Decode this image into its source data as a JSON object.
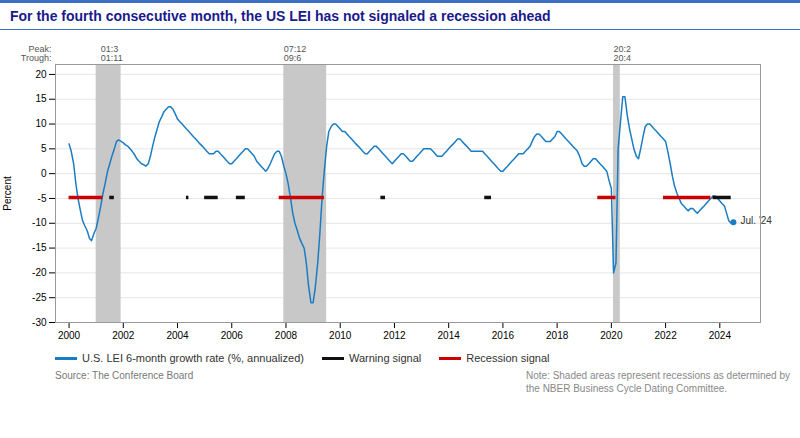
{
  "chart_data": {
    "type": "line",
    "title": "For the fourth consecutive month, the US LEI has not signaled a recession ahead",
    "ylabel": "Percent",
    "xlim": [
      1999.5,
      2025.5
    ],
    "xticks": [
      2000,
      2002,
      2004,
      2006,
      2008,
      2010,
      2012,
      2014,
      2016,
      2018,
      2020,
      2022,
      2024
    ],
    "ylim": [
      -30,
      22
    ],
    "yticks": [
      -30,
      -25,
      -20,
      -15,
      -10,
      -5,
      0,
      5,
      10,
      15,
      20
    ],
    "grid": "y",
    "x": [
      2000.0,
      2000.08,
      2000.17,
      2000.25,
      2000.33,
      2000.42,
      2000.5,
      2000.58,
      2000.67,
      2000.75,
      2000.83,
      2000.92,
      2001.0,
      2001.08,
      2001.17,
      2001.25,
      2001.33,
      2001.42,
      2001.5,
      2001.58,
      2001.67,
      2001.75,
      2001.83,
      2001.92,
      2002.0,
      2002.08,
      2002.17,
      2002.25,
      2002.33,
      2002.42,
      2002.5,
      2002.58,
      2002.67,
      2002.75,
      2002.83,
      2002.92,
      2003.0,
      2003.08,
      2003.17,
      2003.25,
      2003.33,
      2003.42,
      2003.5,
      2003.58,
      2003.67,
      2003.75,
      2003.83,
      2003.92,
      2004.0,
      2004.08,
      2004.17,
      2004.25,
      2004.33,
      2004.42,
      2004.5,
      2004.58,
      2004.67,
      2004.75,
      2004.83,
      2004.92,
      2005.0,
      2005.08,
      2005.17,
      2005.25,
      2005.33,
      2005.42,
      2005.5,
      2005.58,
      2005.67,
      2005.75,
      2005.83,
      2005.92,
      2006.0,
      2006.08,
      2006.17,
      2006.25,
      2006.33,
      2006.42,
      2006.5,
      2006.58,
      2006.67,
      2006.75,
      2006.83,
      2006.92,
      2007.0,
      2007.08,
      2007.17,
      2007.25,
      2007.33,
      2007.42,
      2007.5,
      2007.58,
      2007.67,
      2007.75,
      2007.83,
      2007.92,
      2008.0,
      2008.08,
      2008.17,
      2008.25,
      2008.33,
      2008.42,
      2008.5,
      2008.58,
      2008.67,
      2008.75,
      2008.83,
      2008.92,
      2009.0,
      2009.08,
      2009.17,
      2009.25,
      2009.33,
      2009.42,
      2009.5,
      2009.58,
      2009.67,
      2009.75,
      2009.83,
      2009.92,
      2010.0,
      2010.08,
      2010.17,
      2010.25,
      2010.33,
      2010.42,
      2010.5,
      2010.58,
      2010.67,
      2010.75,
      2010.83,
      2010.92,
      2011.0,
      2011.08,
      2011.17,
      2011.25,
      2011.33,
      2011.42,
      2011.5,
      2011.58,
      2011.67,
      2011.75,
      2011.83,
      2011.92,
      2012.0,
      2012.08,
      2012.17,
      2012.25,
      2012.33,
      2012.42,
      2012.5,
      2012.58,
      2012.67,
      2012.75,
      2012.83,
      2012.92,
      2013.0,
      2013.08,
      2013.17,
      2013.25,
      2013.33,
      2013.42,
      2013.5,
      2013.58,
      2013.67,
      2013.75,
      2013.83,
      2013.92,
      2014.0,
      2014.08,
      2014.17,
      2014.25,
      2014.33,
      2014.42,
      2014.5,
      2014.58,
      2014.67,
      2014.75,
      2014.83,
      2014.92,
      2015.0,
      2015.08,
      2015.17,
      2015.25,
      2015.33,
      2015.42,
      2015.5,
      2015.58,
      2015.67,
      2015.75,
      2015.83,
      2015.92,
      2016.0,
      2016.08,
      2016.17,
      2016.25,
      2016.33,
      2016.42,
      2016.5,
      2016.58,
      2016.67,
      2016.75,
      2016.83,
      2016.92,
      2017.0,
      2017.08,
      2017.17,
      2017.25,
      2017.33,
      2017.42,
      2017.5,
      2017.58,
      2017.67,
      2017.75,
      2017.83,
      2017.92,
      2018.0,
      2018.08,
      2018.17,
      2018.25,
      2018.33,
      2018.42,
      2018.5,
      2018.58,
      2018.67,
      2018.75,
      2018.83,
      2018.92,
      2019.0,
      2019.08,
      2019.17,
      2019.25,
      2019.33,
      2019.42,
      2019.5,
      2019.58,
      2019.67,
      2019.75,
      2019.83,
      2019.92,
      2020.0,
      2020.08,
      2020.17,
      2020.25,
      2020.33,
      2020.42,
      2020.5,
      2020.58,
      2020.67,
      2020.75,
      2020.83,
      2020.92,
      2021.0,
      2021.08,
      2021.17,
      2021.25,
      2021.33,
      2021.42,
      2021.5,
      2021.58,
      2021.67,
      2021.75,
      2021.83,
      2021.92,
      2022.0,
      2022.08,
      2022.17,
      2022.25,
      2022.33,
      2022.42,
      2022.5,
      2022.58,
      2022.67,
      2022.75,
      2022.83,
      2022.92,
      2023.0,
      2023.08,
      2023.17,
      2023.25,
      2023.33,
      2023.42,
      2023.5,
      2023.58,
      2023.67,
      2023.75,
      2023.83,
      2023.92,
      2024.0,
      2024.08,
      2024.17,
      2024.25,
      2024.33,
      2024.42,
      2024.5
    ],
    "series": [
      {
        "name": "U.S. LEI 6-month growth rate (%, annualized)",
        "color": "#1a7dc4",
        "values": [
          6.0,
          4.5,
          2.0,
          -2.0,
          -5.0,
          -7.5,
          -9.5,
          -10.5,
          -11.5,
          -13.0,
          -13.5,
          -12.0,
          -11.0,
          -9.0,
          -6.5,
          -4.0,
          -2.0,
          0.5,
          2.0,
          3.5,
          5.0,
          6.5,
          6.8,
          6.5,
          6.2,
          5.8,
          5.5,
          5.0,
          4.5,
          3.8,
          3.0,
          2.5,
          2.0,
          1.8,
          1.5,
          2.0,
          3.5,
          5.5,
          7.5,
          9.0,
          10.5,
          11.5,
          12.5,
          13.0,
          13.5,
          13.5,
          13.0,
          12.0,
          11.0,
          10.5,
          10.0,
          9.5,
          9.0,
          8.5,
          8.0,
          7.5,
          7.0,
          6.5,
          6.0,
          5.5,
          5.0,
          4.5,
          4.0,
          4.0,
          4.0,
          4.5,
          4.5,
          4.0,
          3.5,
          3.0,
          2.5,
          2.0,
          2.0,
          2.5,
          3.0,
          3.5,
          4.0,
          4.5,
          5.0,
          5.0,
          4.5,
          4.0,
          3.5,
          2.5,
          2.0,
          1.5,
          1.0,
          0.5,
          1.0,
          2.0,
          3.0,
          4.0,
          4.5,
          4.5,
          3.5,
          1.5,
          0.0,
          -2.0,
          -5.0,
          -8.0,
          -10.0,
          -11.5,
          -13.0,
          -14.0,
          -15.0,
          -18.0,
          -22.5,
          -26.0,
          -26.0,
          -23.0,
          -18.0,
          -12.0,
          -5.0,
          1.0,
          5.5,
          8.5,
          9.5,
          10.0,
          10.0,
          9.5,
          9.0,
          8.5,
          8.5,
          8.0,
          7.5,
          7.0,
          6.5,
          6.0,
          5.5,
          5.0,
          4.5,
          4.0,
          4.0,
          4.5,
          5.0,
          5.5,
          5.5,
          5.0,
          4.5,
          4.0,
          3.5,
          3.0,
          2.5,
          2.0,
          2.5,
          3.0,
          3.5,
          4.0,
          4.0,
          3.5,
          3.0,
          2.5,
          2.5,
          3.0,
          3.5,
          4.0,
          4.5,
          5.0,
          5.0,
          5.0,
          5.0,
          4.5,
          4.0,
          3.5,
          3.5,
          3.5,
          4.0,
          4.5,
          5.0,
          5.5,
          6.0,
          6.5,
          7.0,
          7.0,
          6.5,
          6.0,
          5.5,
          5.0,
          4.5,
          4.5,
          4.5,
          4.5,
          4.5,
          4.5,
          4.0,
          3.5,
          3.0,
          2.5,
          2.0,
          1.5,
          1.0,
          0.5,
          0.5,
          1.0,
          1.5,
          2.0,
          2.5,
          3.0,
          3.5,
          4.0,
          4.0,
          4.0,
          4.5,
          5.0,
          5.5,
          6.5,
          7.5,
          8.0,
          8.0,
          7.5,
          7.0,
          6.5,
          6.5,
          6.5,
          7.0,
          7.5,
          8.5,
          8.5,
          8.0,
          7.5,
          7.0,
          6.5,
          6.0,
          5.5,
          5.0,
          4.5,
          3.5,
          2.0,
          1.5,
          1.5,
          2.0,
          2.5,
          3.0,
          3.0,
          2.5,
          2.0,
          1.5,
          1.0,
          0.5,
          -1.5,
          -3.0,
          -20.0,
          -18.0,
          5.0,
          10.0,
          15.5,
          15.5,
          12.0,
          9.0,
          7.0,
          5.0,
          3.5,
          3.0,
          5.0,
          7.5,
          9.5,
          10.0,
          10.0,
          9.5,
          9.0,
          8.5,
          8.0,
          7.5,
          7.0,
          6.5,
          4.5,
          2.0,
          -0.5,
          -2.5,
          -4.0,
          -5.0,
          -6.0,
          -6.5,
          -7.0,
          -7.5,
          -7.0,
          -7.0,
          -7.5,
          -8.0,
          -7.5,
          -7.0,
          -6.5,
          -6.0,
          -5.5,
          -5.0,
          -4.5,
          -4.5,
          -5.0,
          -5.5,
          -6.0,
          -6.5,
          -8.0,
          -9.5,
          -10.0,
          -9.8
        ]
      }
    ],
    "signals": [
      {
        "name": "Warning signal",
        "color": "#111111",
        "segments": [
          {
            "x_start": 2001.5,
            "x_end": 2001.67,
            "y": -4.8
          },
          {
            "x_start": 2004.33,
            "x_end": 2004.42,
            "y": -4.8
          },
          {
            "x_start": 2005.0,
            "x_end": 2005.5,
            "y": -4.8
          },
          {
            "x_start": 2006.17,
            "x_end": 2006.5,
            "y": -4.8
          },
          {
            "x_start": 2011.5,
            "x_end": 2011.67,
            "y": -4.8
          },
          {
            "x_start": 2015.33,
            "x_end": 2015.58,
            "y": -4.8
          },
          {
            "x_start": 2023.75,
            "x_end": 2024.42,
            "y": -4.8
          }
        ]
      },
      {
        "name": "Recession signal",
        "color": "#cc0000",
        "segments": [
          {
            "x_start": 2000.0,
            "x_end": 2001.25,
            "y": -4.8
          },
          {
            "x_start": 2007.75,
            "x_end": 2009.42,
            "y": -4.8
          },
          {
            "x_start": 2019.5,
            "x_end": 2020.17,
            "y": -4.8
          },
          {
            "x_start": 2021.92,
            "x_end": 2023.67,
            "y": -4.8
          }
        ]
      }
    ],
    "recession_shades": [
      {
        "start": 2001.0,
        "end": 2001.92
      },
      {
        "start": 2007.92,
        "end": 2009.5
      },
      {
        "start": 2020.08,
        "end": 2020.33
      }
    ],
    "peak_trough_labels": [
      "Peak:",
      "Trough:"
    ],
    "peak_trough": [
      {
        "x": 2001.17,
        "peak": "01:3",
        "trough": "01:11"
      },
      {
        "x": 2007.92,
        "peak": "07:12",
        "trough": "09:6"
      },
      {
        "x": 2020.08,
        "peak": "20:2",
        "trough": "20:4"
      }
    ],
    "annotations": [
      {
        "x": 2024.58,
        "y": -9.5,
        "text": "Jul. '24"
      }
    ],
    "source": "Source: The Conference Board",
    "note": "Note: Shaded areas represent recessions as determined by\nthe NBER Business Cycle Dating Committee."
  }
}
